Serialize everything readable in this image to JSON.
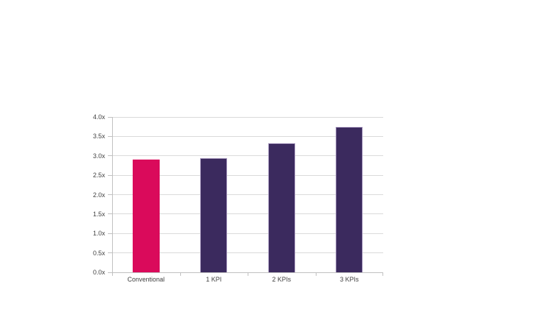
{
  "chart_data": {
    "type": "bar",
    "title": "",
    "xlabel": "",
    "ylabel": "",
    "categories": [
      "Conventional",
      "1 KPI",
      "2 KPIs",
      "3 KPIs"
    ],
    "values": [
      2.9,
      2.95,
      3.32,
      3.75
    ],
    "value_suffix": "x",
    "ylim": [
      0,
      4.0
    ],
    "ytick_step": 0.5,
    "ytick_labels": [
      "0.0x",
      "0.5x",
      "1.0x",
      "1.5x",
      "2.0x",
      "2.5x",
      "3.0x",
      "3.5x",
      "4.0x"
    ],
    "grid": true,
    "legend": false,
    "bar_colors": [
      "#da0a5b",
      "#3b2a5e",
      "#3b2a5e",
      "#3b2a5e"
    ],
    "colors": {
      "highlight_bar": "#da0a5b",
      "default_bar": "#3b2a5e",
      "purple_bar_border": "#a697bd",
      "gridline": "#d9d9d9",
      "axis_line": "#bfbfbf",
      "text": "#404040",
      "background": "#ffffff"
    }
  }
}
